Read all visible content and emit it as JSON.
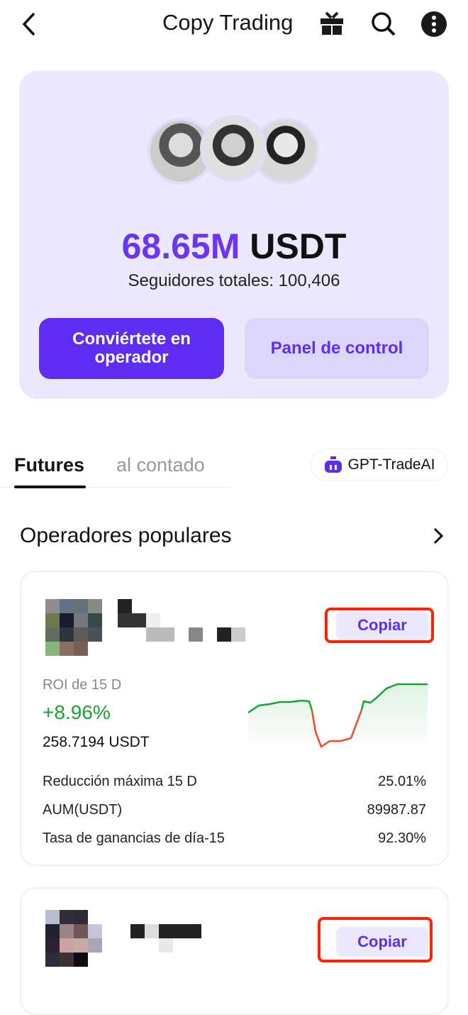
{
  "header": {
    "title": "Copy Trading",
    "icons": [
      "back-icon",
      "gift-icon",
      "search-icon",
      "more-icon"
    ]
  },
  "hero": {
    "amount": "68.65M",
    "currency": "USDT",
    "followers": "Seguidores totales: 100,406",
    "become_trader": "Conviértete en operador",
    "dashboard": "Panel de control"
  },
  "tabs": [
    {
      "label": "Futures",
      "active": true
    },
    {
      "label": "al contado",
      "active": false
    }
  ],
  "gpt_button": "GPT-TradeAI",
  "section": {
    "title": "Operadores populares"
  },
  "traders": [
    {
      "copy": "Copiar",
      "roi_label": "ROI de 15 D",
      "roi": "+8.96%",
      "pnl": "258.7194 USDT",
      "stats": [
        {
          "label": "Reducción máxima 15 D",
          "value": "25.01%"
        },
        {
          "label": "AUM(USDT)",
          "value": "89987.87"
        },
        {
          "label": "Tasa de ganancias de día-15",
          "value": "92.30%"
        }
      ],
      "colors": {
        "up": "#1aa334",
        "down": "#ef4b2c"
      }
    },
    {
      "copy": "Copiar"
    }
  ],
  "colors": {
    "accent": "#5f2cf4",
    "hero_bg": "#ece8fd",
    "highlight": "#ff2200"
  }
}
